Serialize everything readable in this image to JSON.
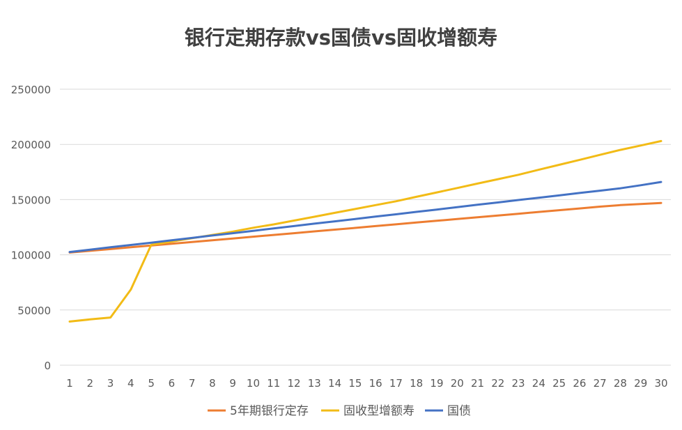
{
  "chart_data": {
    "type": "line",
    "title": "银行定期存款vs国债vs固收增额寿",
    "xlabel": "",
    "ylabel": "",
    "categories": [
      "1",
      "2",
      "3",
      "4",
      "5",
      "6",
      "7",
      "8",
      "9",
      "10",
      "11",
      "12",
      "13",
      "14",
      "15",
      "16",
      "17",
      "18",
      "19",
      "20",
      "21",
      "22",
      "23",
      "24",
      "25",
      "26",
      "27",
      "28",
      "29",
      "30"
    ],
    "ylim": [
      0,
      250000
    ],
    "yticks": [
      "0",
      "50000",
      "100000",
      "150000",
      "200000",
      "250000"
    ],
    "grid": true,
    "legend_position": "bottom",
    "series": [
      {
        "name": "5年期银行定存",
        "color": "#ED7D31",
        "values": [
          102000,
          103600,
          105200,
          106800,
          108400,
          110000,
          111600,
          113200,
          114800,
          116400,
          118000,
          119600,
          121200,
          122800,
          124400,
          126000,
          127600,
          129200,
          130800,
          132400,
          134000,
          135600,
          137200,
          138800,
          140400,
          142000,
          143600,
          145000,
          146000,
          147000
        ]
      },
      {
        "name": "固收型增额寿",
        "color": "#F2BB16",
        "values": [
          39500,
          41500,
          43200,
          68500,
          109000,
          112000,
          115000,
          118000,
          121000,
          124500,
          127500,
          131000,
          134500,
          138000,
          141500,
          145000,
          148500,
          152500,
          156500,
          160500,
          164500,
          168500,
          172500,
          177000,
          181500,
          186000,
          190500,
          195000,
          199000,
          203000
        ]
      },
      {
        "name": "国债",
        "color": "#4472C4",
        "values": [
          102500,
          104600,
          106800,
          108900,
          111000,
          113200,
          115300,
          117500,
          119600,
          121700,
          123900,
          126000,
          128200,
          130300,
          132400,
          134600,
          136700,
          138900,
          141000,
          143100,
          145300,
          147400,
          149600,
          151700,
          153800,
          156000,
          158100,
          160200,
          163000,
          166000
        ]
      }
    ]
  }
}
